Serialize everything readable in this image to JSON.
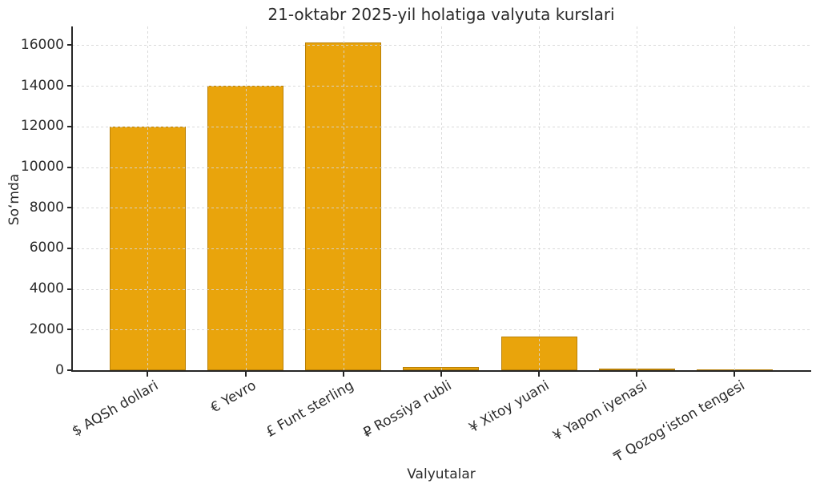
{
  "chart_data": {
    "type": "bar",
    "title": "21-oktabr 2025-yil holatiga valyuta kurslari",
    "xlabel": "Valyutalar",
    "ylabel": "Soʻmda",
    "categories": [
      "$ AQSh dollari",
      "€ Yevro",
      "£ Funt sterling",
      "₽ Rossiya rubli",
      "¥ Xitoy yuani",
      "¥ Yapon iyenasi",
      "₸ Qozogʻiston tengesi"
    ],
    "values": [
      12000,
      14000,
      16150,
      150,
      1650,
      80,
      20
    ],
    "yticks": [
      0,
      2000,
      4000,
      6000,
      8000,
      10000,
      12000,
      14000,
      16000
    ],
    "ylim": [
      0,
      16965
    ],
    "bar_color": "#e9a40c",
    "grid": true,
    "grid_style": "dashed",
    "legend": "none"
  }
}
